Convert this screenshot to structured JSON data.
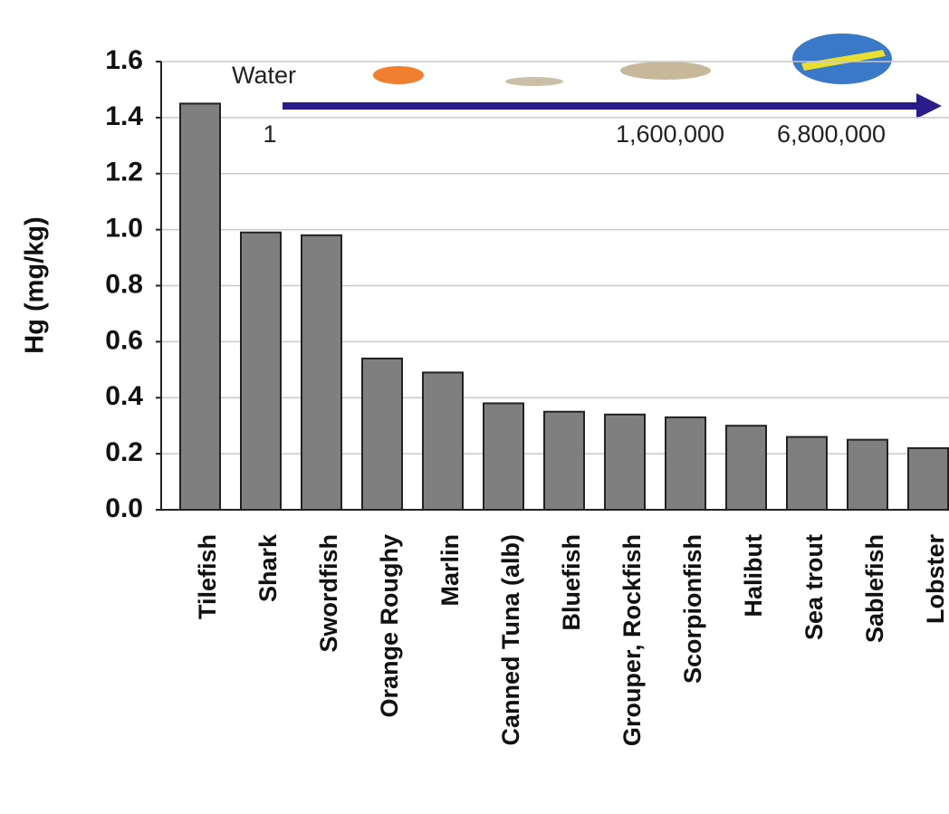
{
  "chart_data": {
    "type": "bar",
    "y_label": "Hg (mg/kg)",
    "categories": [
      "Tilefish",
      "Shark",
      "Swordfish",
      "Orange Roughy",
      "Marlin",
      "Canned Tuna (alb)",
      "Bluefish",
      "Grouper, Rockfish",
      "Scorpionfish",
      "Halibut",
      "Sea trout",
      "Sablefish",
      "Lobster"
    ],
    "values": [
      1.45,
      0.99,
      0.98,
      0.54,
      0.49,
      0.38,
      0.35,
      0.34,
      0.33,
      0.3,
      0.26,
      0.25,
      0.22
    ],
    "color": "#7f7f7f",
    "ylim": [
      0,
      1.6
    ],
    "yticks": [
      {
        "value": 0,
        "label": "0.0"
      },
      0.2,
      0.4,
      0.6,
      0.8,
      {
        "value": 1,
        "label": "1.0"
      },
      1.2,
      1.4,
      1.6
    ],
    "grid": true,
    "annotations": [
      "Water",
      "1",
      "1,600,000",
      "6,800,000"
    ]
  }
}
